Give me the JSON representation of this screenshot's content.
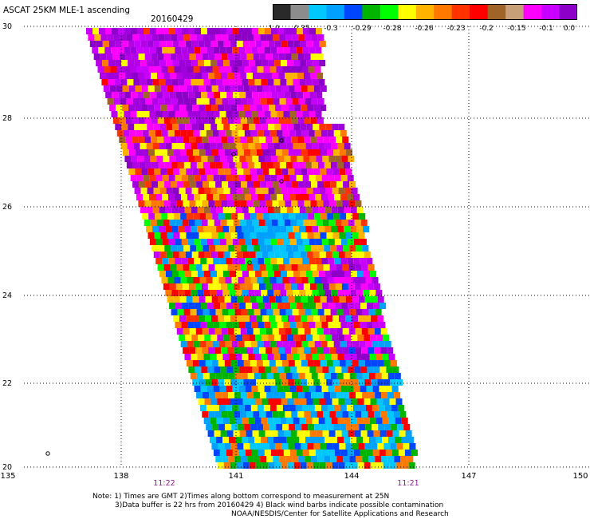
{
  "header": {
    "title": "ASCAT 25KM MLE-1 ascending",
    "date": "20160429"
  },
  "legend": {
    "labels": [
      "-1.0",
      "-0.35",
      "-0.3",
      "-0.29",
      "-0.28",
      "-0.26",
      "-0.23",
      "-0.2",
      "-0.15",
      "-0.1",
      "0.0"
    ],
    "colors": [
      "#2a2a2a",
      "#8c8c8c",
      "#00c8ff",
      "#00a0ff",
      "#0046ff",
      "#00b400",
      "#00ff00",
      "#ffff00",
      "#ffb400",
      "#ff7800",
      "#ff3200",
      "#ff0000",
      "#a06428",
      "#c8a078",
      "#ff00ff",
      "#c800ff",
      "#8c00c8"
    ]
  },
  "axes": {
    "lat_ticks": [
      "30",
      "28",
      "26",
      "24",
      "22",
      "20"
    ],
    "lon_ticks": [
      "135",
      "138",
      "141",
      "144",
      "147",
      "150"
    ],
    "time_labels": [
      "11:22",
      "11:21"
    ]
  },
  "notes": {
    "line1": "Note: 1) Times are GMT 2)Times along bottom correspond to measurement at 25N",
    "line2": "3)Data buffer is 22 hrs from 20160429 4) Black wind barbs indicate possible contamination",
    "line3": "NOAA/NESDIS/Center for Satellite Applications and Research"
  }
}
